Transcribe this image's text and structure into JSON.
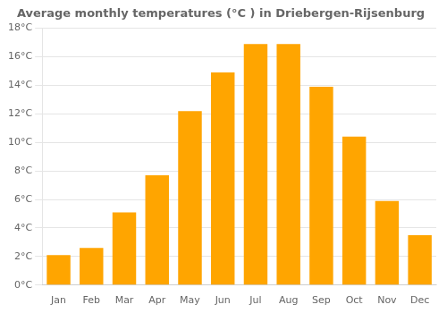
{
  "chart_data": {
    "type": "bar",
    "title": "Average monthly temperatures (°C ) in Driebergen-Rijsenburg",
    "categories": [
      "Jan",
      "Feb",
      "Mar",
      "Apr",
      "May",
      "Jun",
      "Jul",
      "Aug",
      "Sep",
      "Oct",
      "Nov",
      "Dec"
    ],
    "values": [
      2.1,
      2.6,
      5.1,
      7.7,
      12.2,
      14.9,
      16.9,
      16.9,
      13.9,
      10.4,
      5.9,
      3.5
    ],
    "color": "#FFA500",
    "ylim": [
      0,
      18
    ],
    "yticks": [
      {
        "value": 0,
        "label": "0°C"
      },
      {
        "value": 2,
        "label": "2°C"
      },
      {
        "value": 4,
        "label": "4°C"
      },
      {
        "value": 6,
        "label": "6°C"
      },
      {
        "value": 8,
        "label": "8°C"
      },
      {
        "value": 10,
        "label": "10°C"
      },
      {
        "value": 12,
        "label": "12°C"
      },
      {
        "value": 14,
        "label": "14°C"
      },
      {
        "value": 16,
        "label": "16°C"
      },
      {
        "value": 18,
        "label": "18°C"
      }
    ],
    "grid": "y"
  }
}
